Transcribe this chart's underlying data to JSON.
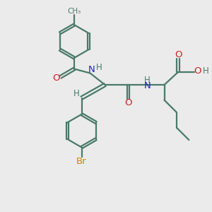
{
  "background_color": "#ebebeb",
  "bond_color": "#4a7a6a",
  "n_color": "#2020cc",
  "o_color": "#cc2020",
  "br_color": "#cc8800",
  "h_color": "#4a7a6a",
  "line_width": 1.6,
  "figsize": [
    3.0,
    3.0
  ],
  "dpi": 100,
  "xlim": [
    0,
    10
  ],
  "ylim": [
    0,
    10
  ]
}
